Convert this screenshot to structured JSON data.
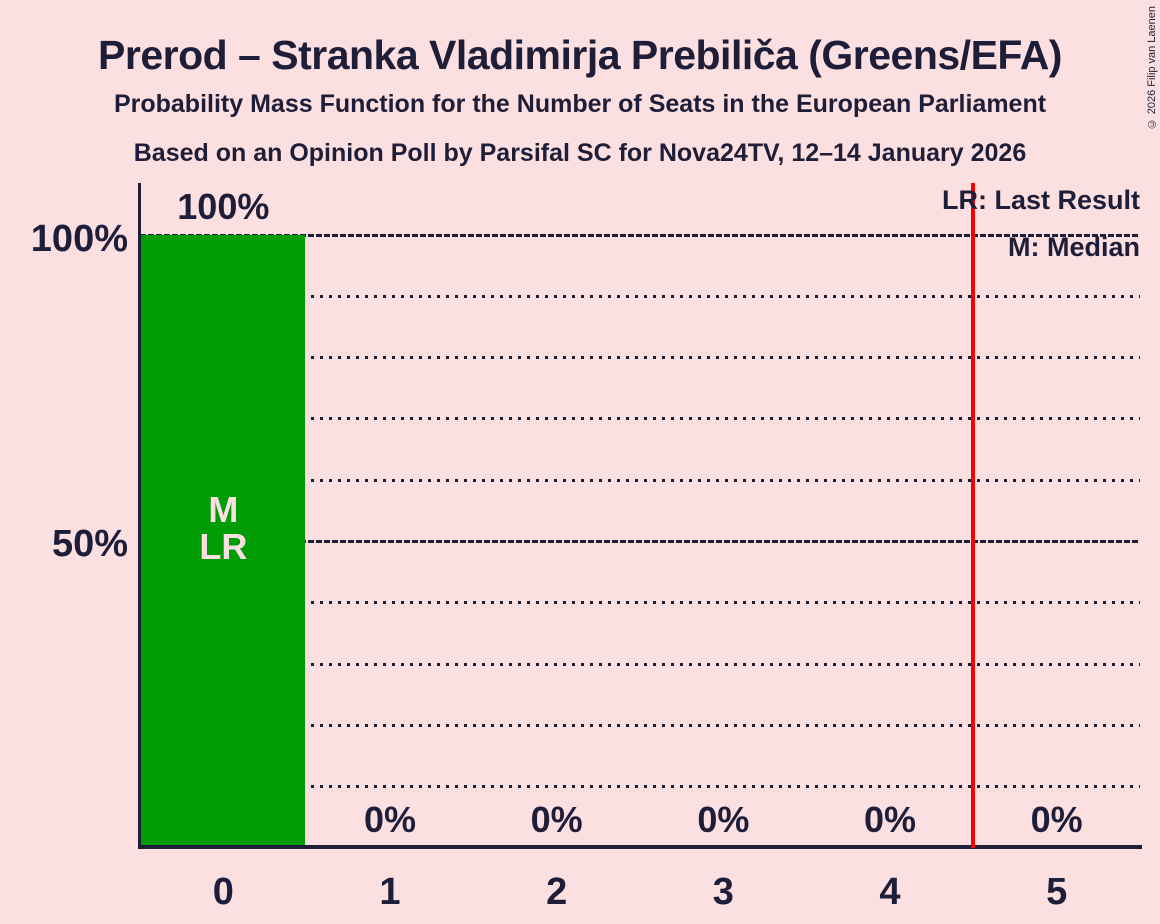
{
  "title": "Prerod – Stranka Vladimirja Prebiliča (Greens/EFA)",
  "subtitle": "Probability Mass Function for the Number of Seats in the European Parliament",
  "source_line": "Based on an Opinion Poll by Parsifal SC for Nova24TV, 12–14 January 2026",
  "copyright": "© 2026 Filip van Laenen",
  "legend": {
    "last_result": "LR: Last Result",
    "median": "M: Median"
  },
  "y_axis_labels": [
    {
      "value": 100,
      "label": "100%"
    },
    {
      "value": 50,
      "label": "50%"
    }
  ],
  "colors": {
    "background": "#fcdfe1",
    "text": "#1e1e38",
    "bar": "#009c06",
    "bar_label_text": "#fcdfe1",
    "red_line": "#f40000"
  },
  "chart_data": {
    "type": "bar",
    "title": "Probability Mass Function for the Number of Seats in the European Parliament",
    "categories": [
      "0",
      "1",
      "2",
      "3",
      "4",
      "5"
    ],
    "values": [
      100,
      0,
      0,
      0,
      0,
      0
    ],
    "value_labels": [
      "100%",
      "0%",
      "0%",
      "0%",
      "0%",
      "0%"
    ],
    "xlabel": "",
    "ylabel": "",
    "ylim": [
      0,
      100
    ],
    "gridlines_pct": [
      10,
      20,
      30,
      40,
      50,
      60,
      70,
      80,
      90,
      100
    ],
    "emphasized_gridlines_pct": [
      50,
      100
    ],
    "grid": true,
    "legend_position": "top-right",
    "bar_annotation": {
      "category_index": 0,
      "lines": [
        "M",
        "LR"
      ]
    },
    "red_line_at_seats": 4.5,
    "median_seats": 0,
    "last_result_seats": 0
  }
}
